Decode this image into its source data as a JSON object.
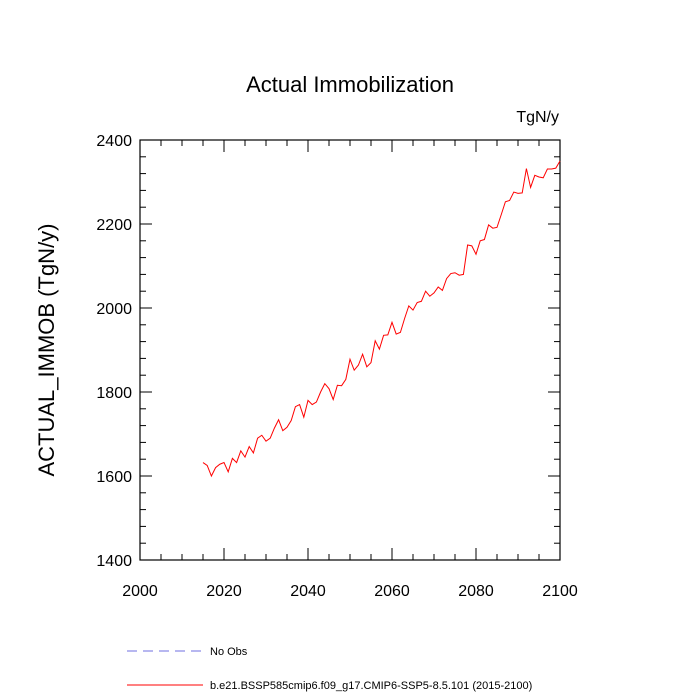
{
  "chart_data": {
    "type": "line",
    "title": "Actual Immobilization",
    "units": "TgN/y",
    "ylabel": "ACTUAL_IMMOB  (TgN/y)",
    "xlabel": "",
    "xlim": [
      2000,
      2100
    ],
    "ylim": [
      1400,
      2400
    ],
    "xticks": [
      2000,
      2020,
      2040,
      2060,
      2080,
      2100
    ],
    "yticks": [
      1400,
      1600,
      1800,
      2000,
      2200,
      2400
    ],
    "grid": false,
    "legend_position": "bottom-left",
    "series": [
      {
        "name": "No Obs",
        "color": "#6f6fe0",
        "dashed": true,
        "x": [],
        "y": []
      },
      {
        "name": "b.e21.BSSP585cmip6.f09_g17.CMIP6-SSP5-8.5.101 (2015-2100)",
        "color": "#ff0000",
        "dashed": false,
        "x": [
          2015,
          2016,
          2017,
          2018,
          2019,
          2020,
          2021,
          2022,
          2023,
          2024,
          2025,
          2026,
          2027,
          2028,
          2029,
          2030,
          2031,
          2032,
          2033,
          2034,
          2035,
          2036,
          2037,
          2038,
          2039,
          2040,
          2041,
          2042,
          2043,
          2044,
          2045,
          2046,
          2047,
          2048,
          2049,
          2050,
          2051,
          2052,
          2053,
          2054,
          2055,
          2056,
          2057,
          2058,
          2059,
          2060,
          2061,
          2062,
          2063,
          2064,
          2065,
          2066,
          2067,
          2068,
          2069,
          2070,
          2071,
          2072,
          2073,
          2074,
          2075,
          2076,
          2077,
          2078,
          2079,
          2080,
          2081,
          2082,
          2083,
          2084,
          2085,
          2086,
          2087,
          2088,
          2089,
          2090,
          2091,
          2092,
          2093,
          2094,
          2095,
          2096,
          2097,
          2098,
          2099,
          2100
        ],
        "y": [
          1632,
          1625,
          1600,
          1620,
          1628,
          1632,
          1610,
          1642,
          1632,
          1660,
          1645,
          1670,
          1655,
          1690,
          1697,
          1683,
          1690,
          1714,
          1734,
          1708,
          1716,
          1732,
          1765,
          1770,
          1740,
          1780,
          1770,
          1776,
          1800,
          1820,
          1808,
          1782,
          1816,
          1815,
          1830,
          1878,
          1852,
          1864,
          1890,
          1860,
          1870,
          1922,
          1902,
          1935,
          1936,
          1966,
          1938,
          1942,
          1975,
          2005,
          1995,
          2013,
          2016,
          2040,
          2028,
          2036,
          2050,
          2042,
          2070,
          2082,
          2084,
          2078,
          2080,
          2150,
          2148,
          2128,
          2160,
          2163,
          2198,
          2190,
          2192,
          2222,
          2253,
          2256,
          2276,
          2273,
          2274,
          2332,
          2287,
          2316,
          2312,
          2310,
          2331,
          2331,
          2333,
          2350
        ]
      }
    ]
  }
}
